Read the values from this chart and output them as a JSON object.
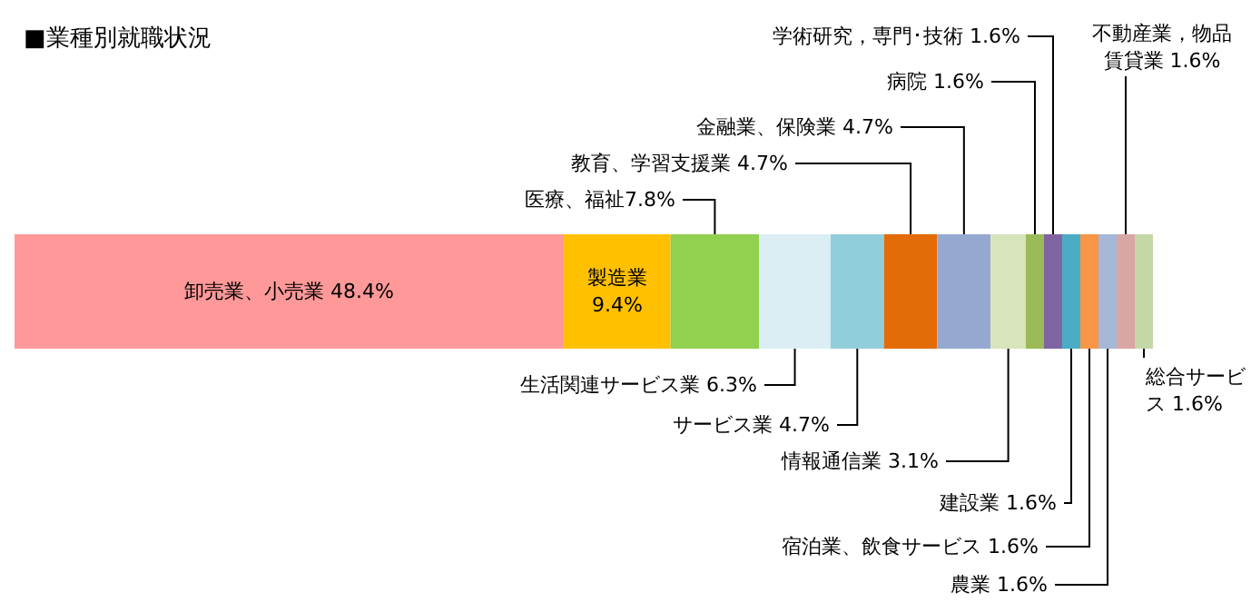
{
  "chart_data": {
    "type": "bar",
    "title": "■業種別就職状況",
    "orientation": "horizontal",
    "stacked": true,
    "categories": [
      null
    ],
    "data_labels": true,
    "series": [
      {
        "name": "卸売業、小売業",
        "color": "#ff9999",
        "values": [
          48.4
        ],
        "value_labels": [
          "48.4%"
        ]
      },
      {
        "name": "製造業",
        "color": "#ffc000",
        "values": [
          9.4
        ],
        "value_labels": [
          "9.4%"
        ]
      },
      {
        "name": "医療、福祉",
        "color": "#92d050",
        "values": [
          7.8
        ],
        "value_labels": [
          "7.8%"
        ]
      },
      {
        "name": "生活関連サービス業",
        "color": "#daeef3",
        "values": [
          6.3
        ],
        "value_labels": [
          "6.3%"
        ]
      },
      {
        "name": "サービス業",
        "color": "#92cddc",
        "values": [
          4.7
        ],
        "value_labels": [
          "4.7%"
        ]
      },
      {
        "name": "教育、学習支援業",
        "color": "#e36c09",
        "values": [
          4.7
        ],
        "value_labels": [
          "4.7%"
        ]
      },
      {
        "name": "金融業、保険業",
        "color": "#95a9d0",
        "values": [
          4.7
        ],
        "value_labels": [
          "4.7%"
        ]
      },
      {
        "name": "情報通信業",
        "color": "#d8e4bc",
        "values": [
          3.1
        ],
        "value_labels": [
          "3.1%"
        ]
      },
      {
        "name": "病院",
        "color": "#9bbb59",
        "values": [
          1.6
        ],
        "value_labels": [
          "1.6%"
        ]
      },
      {
        "name": "学術研究，専門･技術",
        "color": "#8064a2",
        "values": [
          1.6
        ],
        "value_labels": [
          "1.6%"
        ]
      },
      {
        "name": "建設業",
        "color": "#4bacc6",
        "values": [
          1.6
        ],
        "value_labels": [
          "1.6%"
        ]
      },
      {
        "name": "宿泊業、飲食サービス",
        "color": "#f79646",
        "values": [
          1.6
        ],
        "value_labels": [
          "1.6%"
        ]
      },
      {
        "name": "農業",
        "color": "#a6b8d8",
        "values": [
          1.6
        ],
        "value_labels": [
          "1.6%"
        ]
      },
      {
        "name": "不動産業，物品賃貸業",
        "color": "#d9a6a6",
        "values": [
          1.6
        ],
        "value_labels": [
          "1.6%"
        ]
      },
      {
        "name": "総合サービス",
        "color": "#c4d7a8",
        "values": [
          1.6
        ],
        "value_labels": [
          "1.6%"
        ]
      }
    ]
  }
}
